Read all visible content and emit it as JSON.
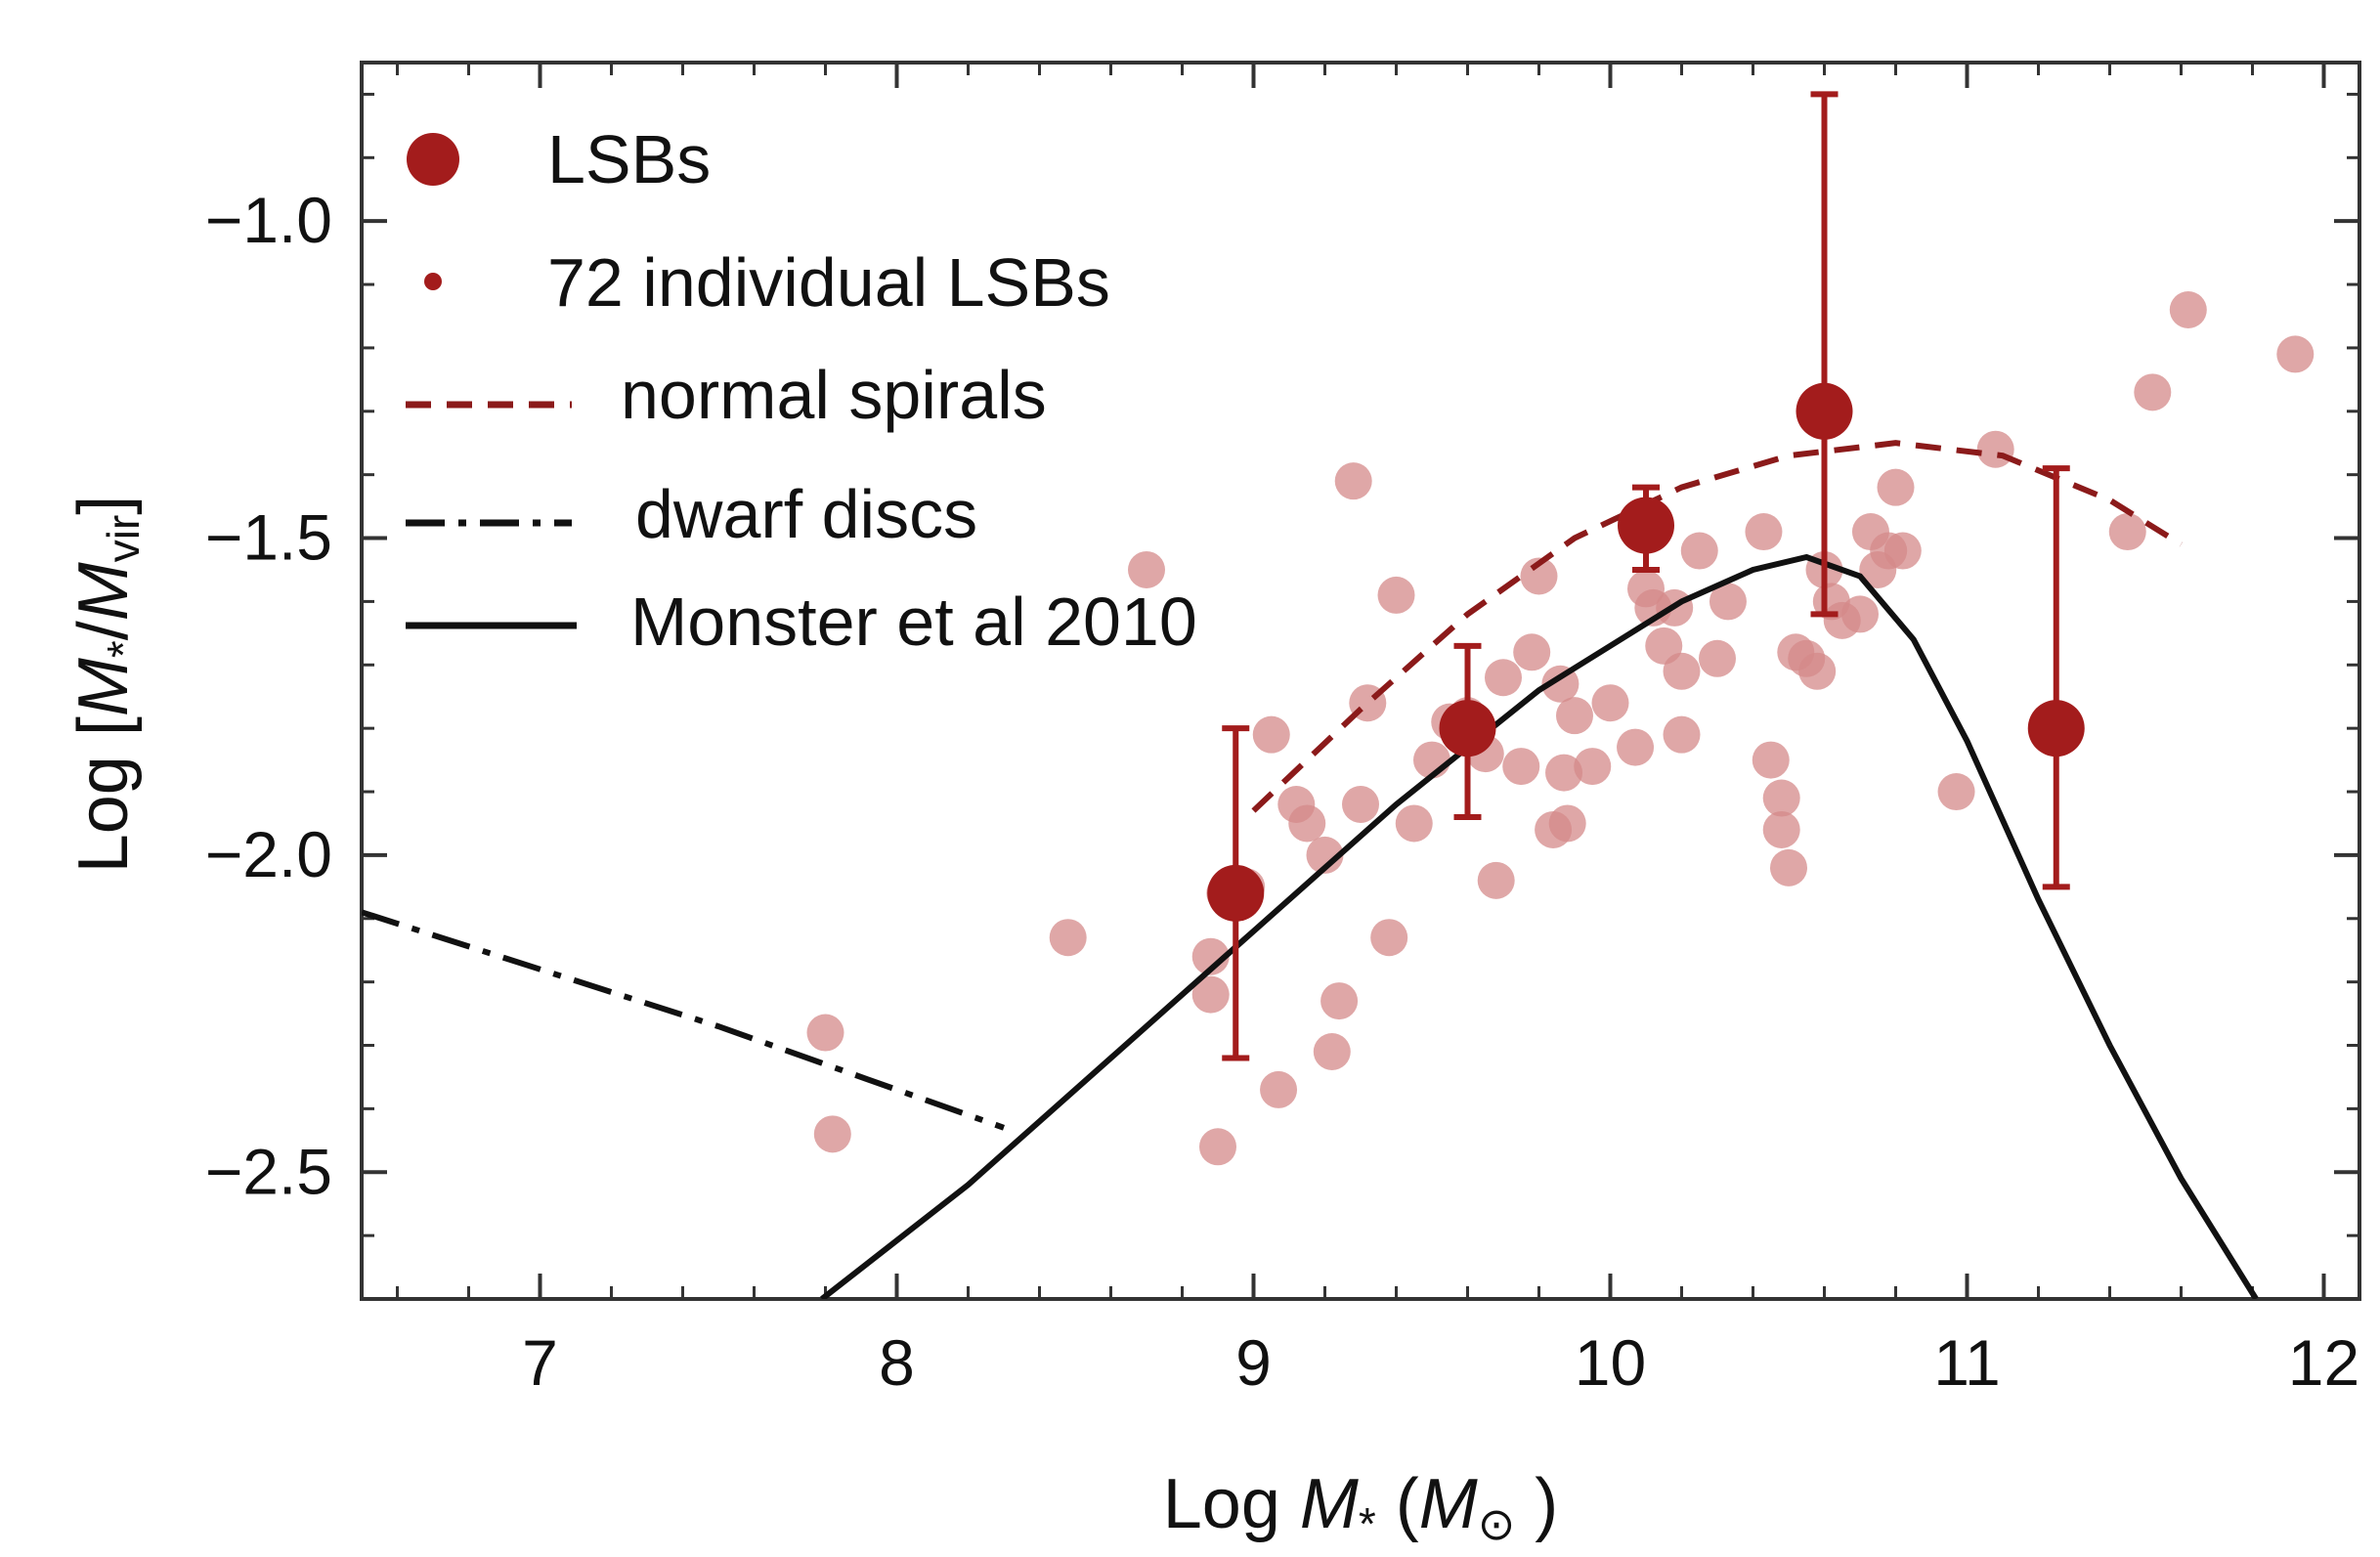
{
  "chart_data": {
    "type": "scatter",
    "title": "",
    "xlabel": {
      "prefix": "Log ",
      "var": "M",
      "sub": "*",
      "open": " (",
      "unit": "M",
      "unit_sub": "⊙",
      "close": " )"
    },
    "ylabel": {
      "prefix": "Log [",
      "num": "M",
      "num_sub": "*",
      "slash": "/",
      "den": "M",
      "den_sub": "vir",
      "close": "]"
    },
    "xlim": [
      6.5,
      12.1
    ],
    "ylim": [
      -2.7,
      -0.75
    ],
    "xticks": [
      7,
      8,
      9,
      10,
      11,
      12
    ],
    "xtick_labels": [
      "7",
      "8",
      "9",
      "10",
      "11",
      "12"
    ],
    "yticks": [
      -2.5,
      -2.0,
      -1.5,
      -1.0
    ],
    "ytick_labels": [
      "−2.5",
      "−2.0",
      "−1.5",
      "−1.0"
    ],
    "grid": false,
    "legend_position": "top-left",
    "legend": [
      {
        "label": "LSBs",
        "style": "big-dot"
      },
      {
        "label": "72 individual LSBs",
        "style": "small-dot"
      },
      {
        "label": "normal spirals",
        "style": "dashed"
      },
      {
        "label": "dwarf discs",
        "style": "dash-dot"
      },
      {
        "label": "Monster et al 2010",
        "style": "solid"
      }
    ],
    "colors": {
      "lsb": "#a31c1c",
      "individual": "#d48a8a",
      "curve": "#111111",
      "spirals": "#8b1a1a"
    },
    "binned_lsbs": [
      {
        "x": 8.95,
        "y": -2.06,
        "err_low": -2.32,
        "err_high": -1.8
      },
      {
        "x": 9.6,
        "y": -1.8,
        "err_low": -1.94,
        "err_high": -1.67
      },
      {
        "x": 10.1,
        "y": -1.48,
        "err_low": -1.55,
        "err_high": -1.42
      },
      {
        "x": 10.6,
        "y": -1.3,
        "err_low": -1.62,
        "err_high": -0.8
      },
      {
        "x": 11.25,
        "y": -1.8,
        "err_low": -2.05,
        "err_high": -1.39
      }
    ],
    "individual_lsbs": [
      {
        "x": 7.8,
        "y": -2.28
      },
      {
        "x": 7.82,
        "y": -2.44
      },
      {
        "x": 8.48,
        "y": -2.13
      },
      {
        "x": 8.7,
        "y": -1.55
      },
      {
        "x": 8.88,
        "y": -2.16
      },
      {
        "x": 8.88,
        "y": -2.22
      },
      {
        "x": 8.9,
        "y": -2.46
      },
      {
        "x": 8.92,
        "y": -2.06
      },
      {
        "x": 8.98,
        "y": -2.05
      },
      {
        "x": 9.05,
        "y": -1.81
      },
      {
        "x": 9.07,
        "y": -2.37
      },
      {
        "x": 9.12,
        "y": -1.92
      },
      {
        "x": 9.15,
        "y": -1.95
      },
      {
        "x": 9.2,
        "y": -2.0
      },
      {
        "x": 9.22,
        "y": -2.31
      },
      {
        "x": 9.24,
        "y": -2.23
      },
      {
        "x": 9.28,
        "y": -1.41
      },
      {
        "x": 9.3,
        "y": -1.92
      },
      {
        "x": 9.32,
        "y": -1.76
      },
      {
        "x": 9.38,
        "y": -2.13
      },
      {
        "x": 9.4,
        "y": -1.59
      },
      {
        "x": 9.45,
        "y": -1.95
      },
      {
        "x": 9.5,
        "y": -1.85
      },
      {
        "x": 9.55,
        "y": -1.79
      },
      {
        "x": 9.6,
        "y": -1.78
      },
      {
        "x": 9.65,
        "y": -1.84
      },
      {
        "x": 9.68,
        "y": -2.04
      },
      {
        "x": 9.7,
        "y": -1.72
      },
      {
        "x": 9.75,
        "y": -1.86
      },
      {
        "x": 9.78,
        "y": -1.68
      },
      {
        "x": 9.8,
        "y": -1.56
      },
      {
        "x": 9.84,
        "y": -1.96
      },
      {
        "x": 9.86,
        "y": -1.73
      },
      {
        "x": 9.87,
        "y": -1.87
      },
      {
        "x": 9.88,
        "y": -1.95
      },
      {
        "x": 9.9,
        "y": -1.78
      },
      {
        "x": 9.95,
        "y": -1.86
      },
      {
        "x": 10.0,
        "y": -1.76
      },
      {
        "x": 10.07,
        "y": -1.83
      },
      {
        "x": 10.1,
        "y": -1.58
      },
      {
        "x": 10.12,
        "y": -1.61
      },
      {
        "x": 10.15,
        "y": -1.67
      },
      {
        "x": 10.18,
        "y": -1.61
      },
      {
        "x": 10.2,
        "y": -1.71
      },
      {
        "x": 10.2,
        "y": -1.81
      },
      {
        "x": 10.25,
        "y": -1.52
      },
      {
        "x": 10.33,
        "y": -1.6
      },
      {
        "x": 10.3,
        "y": -1.69
      },
      {
        "x": 10.43,
        "y": -1.49
      },
      {
        "x": 10.45,
        "y": -1.85
      },
      {
        "x": 10.48,
        "y": -1.91
      },
      {
        "x": 10.48,
        "y": -1.96
      },
      {
        "x": 10.5,
        "y": -2.02
      },
      {
        "x": 10.52,
        "y": -1.68
      },
      {
        "x": 10.55,
        "y": -1.69
      },
      {
        "x": 10.58,
        "y": -1.71
      },
      {
        "x": 10.6,
        "y": -1.55
      },
      {
        "x": 10.62,
        "y": -1.6
      },
      {
        "x": 10.65,
        "y": -1.63
      },
      {
        "x": 10.7,
        "y": -1.62
      },
      {
        "x": 10.73,
        "y": -1.49
      },
      {
        "x": 10.75,
        "y": -1.55
      },
      {
        "x": 10.78,
        "y": -1.52
      },
      {
        "x": 10.8,
        "y": -1.42
      },
      {
        "x": 10.82,
        "y": -1.52
      },
      {
        "x": 10.97,
        "y": -1.9
      },
      {
        "x": 11.08,
        "y": -1.36
      },
      {
        "x": 11.45,
        "y": -1.49
      },
      {
        "x": 11.52,
        "y": -1.27
      },
      {
        "x": 11.62,
        "y": -1.14
      },
      {
        "x": 11.92,
        "y": -1.21
      },
      {
        "x": 10.1,
        "y": -1.49
      }
    ],
    "normal_spirals": {
      "x": [
        9.0,
        9.3,
        9.6,
        9.9,
        10.2,
        10.5,
        10.8,
        11.1,
        11.4,
        11.6
      ],
      "y": [
        -1.93,
        -1.77,
        -1.62,
        -1.5,
        -1.42,
        -1.37,
        -1.35,
        -1.37,
        -1.44,
        -1.51
      ]
    },
    "dwarf_discs": {
      "x": [
        6.5,
        7.0,
        7.5,
        8.0,
        8.3
      ],
      "y": [
        -2.09,
        -2.18,
        -2.27,
        -2.37,
        -2.43
      ]
    },
    "monster_2010": {
      "x": [
        7.79,
        8.2,
        8.6,
        9.0,
        9.4,
        9.8,
        10.2,
        10.4,
        10.55,
        10.7,
        10.85,
        11.0,
        11.2,
        11.4,
        11.6,
        11.81
      ],
      "y": [
        -2.7,
        -2.52,
        -2.32,
        -2.12,
        -1.92,
        -1.74,
        -1.6,
        -1.55,
        -1.53,
        -1.56,
        -1.66,
        -1.82,
        -2.07,
        -2.3,
        -2.51,
        -2.7
      ]
    }
  }
}
